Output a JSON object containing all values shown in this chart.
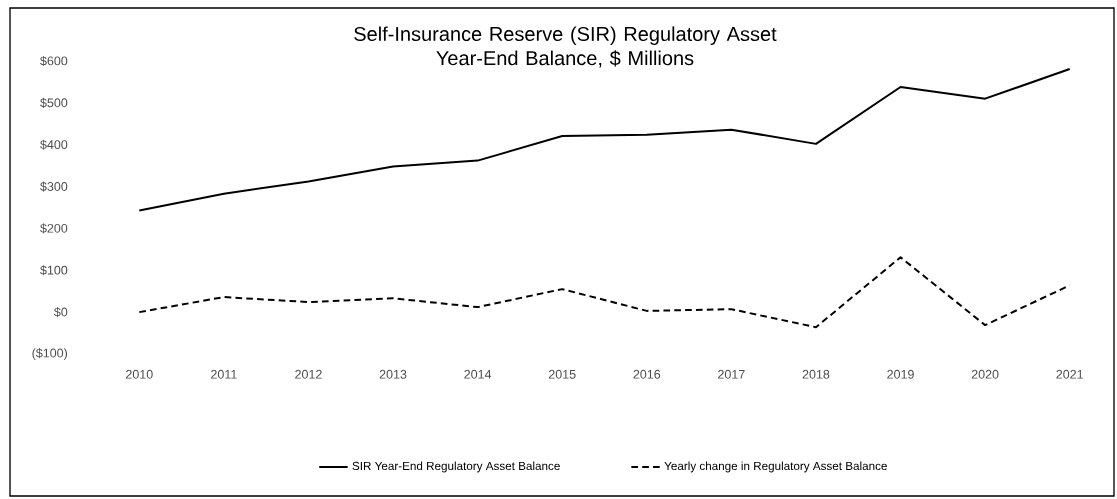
{
  "chart_data": {
    "type": "line",
    "title": "Self-Insurance Reserve (SIR) Regulatory Asset\nYear-End Balance, $ Millions",
    "categories": [
      "2010",
      "2011",
      "2012",
      "2013",
      "2014",
      "2015",
      "2016",
      "2017",
      "2018",
      "2019",
      "2020",
      "2021"
    ],
    "series": [
      {
        "name": "SIR Year-End Regulatory Asset Balance",
        "color": "#000000",
        "line_style": "solid",
        "values": [
          243,
          283,
          312,
          348,
          362,
          421,
          424,
          436,
          402,
          538,
          510,
          581
        ]
      },
      {
        "name": "Yearly change in Regulatory Asset Balance",
        "color": "#000000",
        "line_style": "dashed",
        "values": [
          0,
          36,
          24,
          33,
          12,
          55,
          3,
          7,
          -36,
          131,
          -31,
          64
        ]
      }
    ],
    "ylim": [
      -100,
      600
    ],
    "yticks": [
      {
        "value": -100,
        "label": "($100)"
      },
      {
        "value": 0,
        "label": "$0"
      },
      {
        "value": 100,
        "label": "$100"
      },
      {
        "value": 200,
        "label": "$200"
      },
      {
        "value": 300,
        "label": "$300"
      },
      {
        "value": 400,
        "label": "$400"
      },
      {
        "value": 500,
        "label": "$500"
      },
      {
        "value": 600,
        "label": "$600"
      }
    ],
    "grid": false,
    "legend": "bottom",
    "marker": "none"
  }
}
